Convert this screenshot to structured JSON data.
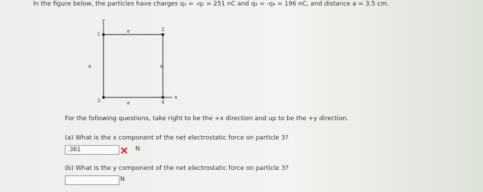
{
  "header": {
    "text": "In the figure below, the particles have charges q₁ = -q₂ = 251 nC and q₃ = -q₄ = 196 nC, and distance a = 3.5 cm."
  },
  "figure": {
    "y_axis": "y",
    "x_axis": "x",
    "side_top": "a",
    "side_left": "a",
    "side_right": "a",
    "side_bottom": "a",
    "particles": [
      "1",
      "2",
      "3",
      "4"
    ]
  },
  "directions": "For the following questions, take right to be the +x direction and up to be the +y direction.",
  "questions": [
    {
      "prompt": "(a) What is the x component of the net electrostatic force on particle 3?",
      "answer": ".361",
      "unit": "N"
    },
    {
      "prompt": "(b) What is the y component of the net electrostatic force on particle 3?",
      "answer": "",
      "unit": "N"
    }
  ]
}
